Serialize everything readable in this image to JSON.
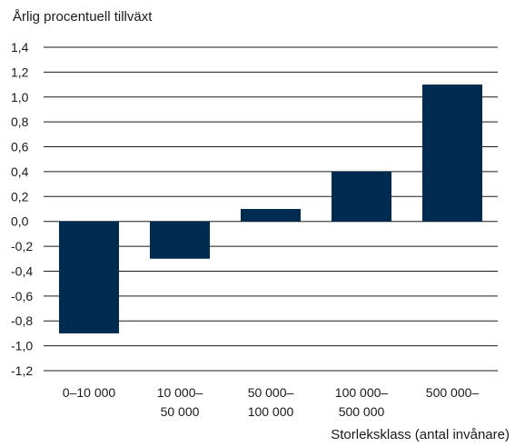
{
  "chart_data": {
    "type": "bar",
    "ylabel": "Årlig procentuell tillväxt",
    "xlabel": "Storleksklass (antal invånare)",
    "categories": [
      [
        "0–10 000"
      ],
      [
        "10 000–",
        "50 000"
      ],
      [
        "50 000–",
        "100 000"
      ],
      [
        "100 000–",
        "500 000"
      ],
      [
        "500 000–"
      ]
    ],
    "values": [
      -0.9,
      -0.3,
      0.1,
      0.4,
      1.1
    ],
    "ylim": [
      -1.2,
      1.4
    ],
    "yticks": [
      "1,4",
      "1,2",
      "1,0",
      "0,8",
      "0,6",
      "0,4",
      "0,2",
      "0,0",
      "-0,2",
      "-0,4",
      "-0,6",
      "-0,8",
      "-1,0",
      "-1,2"
    ],
    "grid": true,
    "bar_color": "#002b50"
  }
}
